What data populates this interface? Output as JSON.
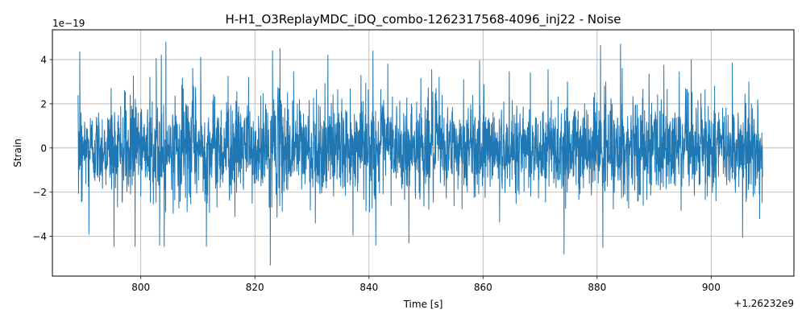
{
  "chart_data": {
    "type": "line",
    "title": "H-H1_O3ReplayMDC_iDQ_combo-1262317568-4096_inj22 - Noise",
    "xlabel": "Time [s]",
    "ylabel": "Strain",
    "x_offset_label": "+1.26232e9",
    "y_scale_label": "1e−19",
    "xlim": [
      784.5,
      914.5
    ],
    "ylim": [
      -5.8,
      5.35
    ],
    "x_ticks": [
      800,
      820,
      840,
      860,
      880,
      900
    ],
    "x_tick_labels": [
      "800",
      "820",
      "840",
      "860",
      "880",
      "900"
    ],
    "y_ticks": [
      -4,
      -2,
      0,
      2,
      4
    ],
    "y_tick_labels": [
      "−4",
      "−2",
      "0",
      "2",
      "4"
    ],
    "grid": true,
    "legend": "none",
    "series": [
      {
        "color": "#1f77b4",
        "x_range": [
          789.0,
          909.0
        ],
        "sample_step": 0.04,
        "typical_peak": 2.3,
        "envelope": [
          [
            789.0,
            2.6
          ],
          [
            792.0,
            2.4
          ],
          [
            795.0,
            2.7
          ],
          [
            798.0,
            2.8
          ],
          [
            802.0,
            3.2
          ],
          [
            806.0,
            3.0
          ],
          [
            810.0,
            3.1
          ],
          [
            815.0,
            3.0
          ],
          [
            820.0,
            2.6
          ],
          [
            824.0,
            3.3
          ],
          [
            828.0,
            2.9
          ],
          [
            832.0,
            3.0
          ],
          [
            836.0,
            2.9
          ],
          [
            840.0,
            3.0
          ],
          [
            845.0,
            2.6
          ],
          [
            850.0,
            3.0
          ],
          [
            855.0,
            2.7
          ],
          [
            860.0,
            2.9
          ],
          [
            865.0,
            2.6
          ],
          [
            870.0,
            2.7
          ],
          [
            874.0,
            3.0
          ],
          [
            878.0,
            2.6
          ],
          [
            881.0,
            3.5
          ],
          [
            885.0,
            3.2
          ],
          [
            890.0,
            2.9
          ],
          [
            895.0,
            3.0
          ],
          [
            900.0,
            2.7
          ],
          [
            905.0,
            2.6
          ],
          [
            909.0,
            2.5
          ]
        ],
        "extremes": [
          [
            789.3,
            4.35
          ],
          [
            789.7,
            -2.4
          ],
          [
            790.9,
            -3.9
          ],
          [
            794.8,
            2.7
          ],
          [
            795.3,
            -4.45
          ],
          [
            798.7,
            3.25
          ],
          [
            799.0,
            -4.45
          ],
          [
            801.6,
            3.2
          ],
          [
            802.7,
            4.05
          ],
          [
            803.3,
            -4.4
          ],
          [
            803.6,
            4.2
          ],
          [
            804.1,
            -4.45
          ],
          [
            804.4,
            4.8
          ],
          [
            807.3,
            3.15
          ],
          [
            809.1,
            3.6
          ],
          [
            810.5,
            4.1
          ],
          [
            811.5,
            -4.45
          ],
          [
            815.3,
            3.25
          ],
          [
            816.5,
            -3.1
          ],
          [
            818.9,
            3.2
          ],
          [
            822.7,
            -5.3
          ],
          [
            823.1,
            4.4
          ],
          [
            824.4,
            4.5
          ],
          [
            826.8,
            3.45
          ],
          [
            830.6,
            -3.4
          ],
          [
            832.8,
            4.2
          ],
          [
            833.7,
            2.4
          ],
          [
            837.2,
            -3.95
          ],
          [
            838.6,
            3.3
          ],
          [
            840.7,
            4.4
          ],
          [
            841.2,
            -4.4
          ],
          [
            843.3,
            3.8
          ],
          [
            847.0,
            -4.3
          ],
          [
            849.1,
            3.15
          ],
          [
            851.0,
            3.55
          ],
          [
            852.3,
            3.2
          ],
          [
            856.6,
            3.1
          ],
          [
            859.4,
            3.95
          ],
          [
            862.9,
            -3.35
          ],
          [
            864.6,
            3.45
          ],
          [
            868.3,
            3.4
          ],
          [
            871.4,
            3.55
          ],
          [
            874.2,
            -4.8
          ],
          [
            874.8,
            3.0
          ],
          [
            880.6,
            4.65
          ],
          [
            881.0,
            -4.5
          ],
          [
            884.1,
            4.7
          ],
          [
            884.4,
            3.6
          ],
          [
            889.1,
            3.35
          ],
          [
            891.7,
            3.75
          ],
          [
            894.4,
            3.45
          ],
          [
            896.5,
            4.0
          ],
          [
            900.6,
            2.8
          ],
          [
            903.7,
            3.85
          ],
          [
            905.5,
            -4.05
          ],
          [
            906.6,
            3.0
          ],
          [
            908.5,
            -3.2
          ]
        ]
      }
    ]
  }
}
